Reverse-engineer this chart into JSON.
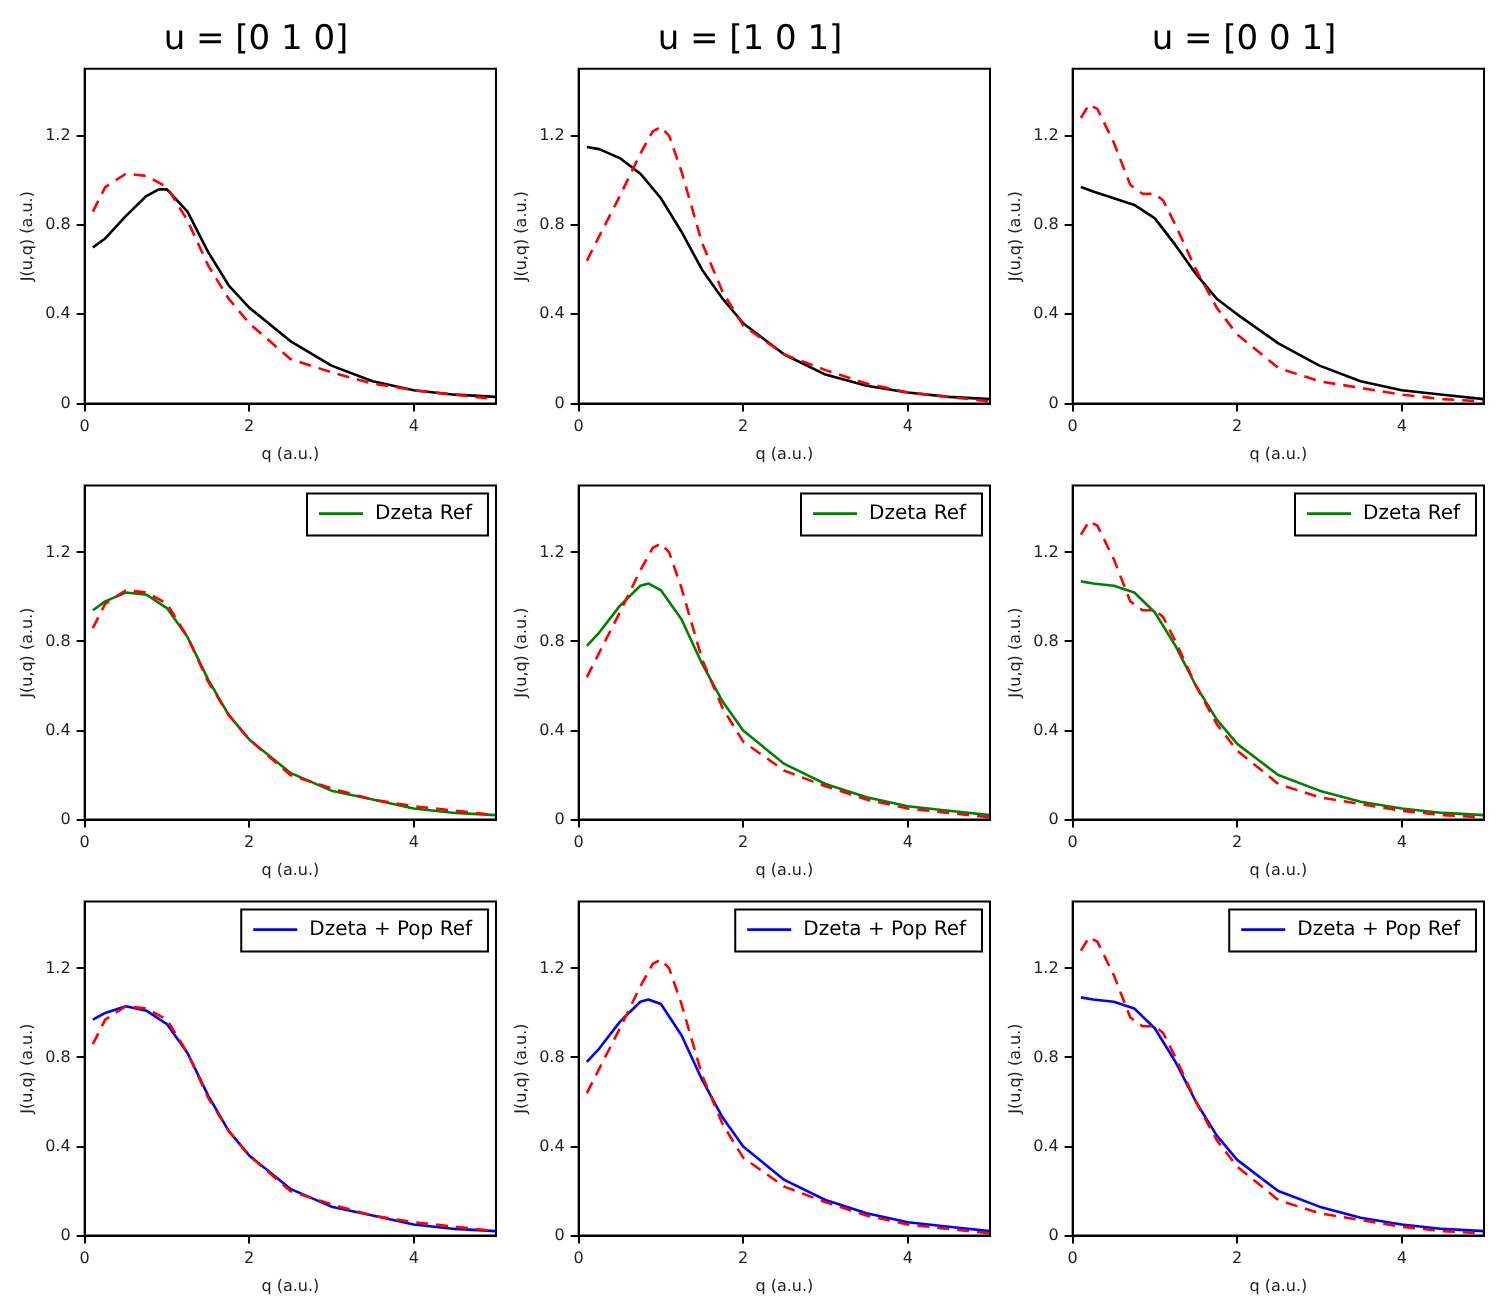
{
  "chart_data": [
    {
      "type": "line",
      "title": "u = [0 1 0]",
      "xlabel": "q (a.u.)",
      "ylabel": "J(u,q) (a.u.)",
      "xlim": [
        0,
        5
      ],
      "xticks": [
        0,
        2,
        4
      ],
      "ylim": [
        0,
        1.5
      ],
      "yticks": [
        0,
        0.4,
        0.8,
        1.2
      ],
      "legend": false,
      "series": [
        {
          "color": "#000000",
          "line_style": "solid",
          "x": [
            0.1,
            0.25,
            0.5,
            0.75,
            0.9,
            1.0,
            1.25,
            1.5,
            1.75,
            2,
            2.5,
            3,
            3.5,
            4,
            4.5,
            5
          ],
          "values": [
            0.7,
            0.74,
            0.84,
            0.93,
            0.96,
            0.96,
            0.86,
            0.68,
            0.53,
            0.43,
            0.28,
            0.17,
            0.1,
            0.06,
            0.04,
            0.03
          ]
        },
        {
          "color": "#ff0000",
          "line_style": "dashed",
          "x": [
            0.1,
            0.25,
            0.5,
            0.75,
            1.0,
            1.25,
            1.5,
            1.75,
            2,
            2.5,
            3,
            3.5,
            4,
            4.5,
            5
          ],
          "values": [
            0.86,
            0.97,
            1.03,
            1.02,
            0.97,
            0.82,
            0.62,
            0.47,
            0.36,
            0.2,
            0.14,
            0.09,
            0.06,
            0.04,
            0.02
          ]
        }
      ]
    },
    {
      "type": "line",
      "title": "u = [1 0 1]",
      "xlabel": "q (a.u.)",
      "ylabel": "J(u,q) (a.u.)",
      "xlim": [
        0,
        5
      ],
      "xticks": [
        0,
        2,
        4
      ],
      "ylim": [
        0,
        1.5
      ],
      "yticks": [
        0,
        0.4,
        0.8,
        1.2
      ],
      "legend": false,
      "series": [
        {
          "color": "#000000",
          "line_style": "solid",
          "x": [
            0.1,
            0.25,
            0.5,
            0.75,
            1.0,
            1.25,
            1.5,
            1.75,
            2,
            2.5,
            3,
            3.5,
            4,
            4.5,
            5
          ],
          "values": [
            1.15,
            1.14,
            1.1,
            1.03,
            0.92,
            0.77,
            0.6,
            0.47,
            0.36,
            0.22,
            0.13,
            0.08,
            0.05,
            0.03,
            0.02
          ]
        },
        {
          "color": "#ff0000",
          "line_style": "dashed",
          "x": [
            0.1,
            0.25,
            0.5,
            0.75,
            0.9,
            1.0,
            1.1,
            1.25,
            1.5,
            1.75,
            2,
            2.5,
            3,
            3.5,
            4,
            4.5,
            5
          ],
          "values": [
            0.64,
            0.75,
            0.93,
            1.12,
            1.22,
            1.24,
            1.2,
            1.04,
            0.72,
            0.5,
            0.35,
            0.22,
            0.15,
            0.09,
            0.05,
            0.03,
            0.01
          ]
        }
      ]
    },
    {
      "type": "line",
      "title": "u = [0 0 1]",
      "xlabel": "q (a.u.)",
      "ylabel": "J(u,q) (a.u.)",
      "xlim": [
        0,
        5
      ],
      "xticks": [
        0,
        2,
        4
      ],
      "ylim": [
        0,
        1.5
      ],
      "yticks": [
        0,
        0.4,
        0.8,
        1.2
      ],
      "legend": false,
      "series": [
        {
          "color": "#000000",
          "line_style": "solid",
          "x": [
            0.1,
            0.25,
            0.5,
            0.75,
            1.0,
            1.25,
            1.5,
            1.75,
            2,
            2.5,
            3,
            3.5,
            4,
            4.5,
            5
          ],
          "values": [
            0.97,
            0.95,
            0.92,
            0.89,
            0.83,
            0.71,
            0.58,
            0.47,
            0.4,
            0.27,
            0.17,
            0.1,
            0.06,
            0.04,
            0.02
          ]
        },
        {
          "color": "#ff0000",
          "line_style": "dashed",
          "x": [
            0.1,
            0.2,
            0.3,
            0.5,
            0.7,
            0.85,
            1.0,
            1.1,
            1.25,
            1.5,
            1.75,
            2,
            2.5,
            3,
            3.5,
            4,
            4.5,
            5
          ],
          "values": [
            1.28,
            1.34,
            1.32,
            1.17,
            0.98,
            0.94,
            0.94,
            0.91,
            0.8,
            0.6,
            0.43,
            0.31,
            0.16,
            0.1,
            0.07,
            0.04,
            0.02,
            0.01
          ]
        }
      ]
    },
    {
      "type": "line",
      "xlabel": "q (a.u.)",
      "ylabel": "J(u,q) (a.u.)",
      "xlim": [
        0,
        5
      ],
      "xticks": [
        0,
        2,
        4
      ],
      "ylim": [
        0,
        1.5
      ],
      "yticks": [
        0,
        0.4,
        0.8,
        1.2
      ],
      "legend": "top right",
      "series": [
        {
          "name": "Dzeta Ref",
          "color": "#008000",
          "line_style": "solid",
          "x": [
            0.1,
            0.25,
            0.5,
            0.75,
            1.0,
            1.25,
            1.5,
            1.75,
            2,
            2.5,
            3,
            3.5,
            4,
            4.5,
            5
          ],
          "values": [
            0.94,
            0.98,
            1.02,
            1.01,
            0.95,
            0.82,
            0.63,
            0.47,
            0.36,
            0.21,
            0.13,
            0.09,
            0.05,
            0.03,
            0.02
          ]
        },
        {
          "color": "#ff0000",
          "line_style": "dashed",
          "x": [
            0.1,
            0.25,
            0.5,
            0.75,
            1.0,
            1.25,
            1.5,
            1.75,
            2,
            2.5,
            3,
            3.5,
            4,
            4.5,
            5
          ],
          "values": [
            0.86,
            0.97,
            1.03,
            1.02,
            0.97,
            0.82,
            0.62,
            0.47,
            0.36,
            0.2,
            0.14,
            0.09,
            0.06,
            0.04,
            0.02
          ]
        }
      ]
    },
    {
      "type": "line",
      "xlabel": "q (a.u.)",
      "ylabel": "J(u,q) (a.u.)",
      "xlim": [
        0,
        5
      ],
      "xticks": [
        0,
        2,
        4
      ],
      "ylim": [
        0,
        1.5
      ],
      "yticks": [
        0,
        0.4,
        0.8,
        1.2
      ],
      "legend": "top right",
      "series": [
        {
          "name": "Dzeta Ref",
          "color": "#008000",
          "line_style": "solid",
          "x": [
            0.1,
            0.25,
            0.5,
            0.75,
            0.85,
            1.0,
            1.25,
            1.5,
            1.75,
            2,
            2.5,
            3,
            3.5,
            4,
            4.5,
            5
          ],
          "values": [
            0.78,
            0.84,
            0.96,
            1.05,
            1.06,
            1.03,
            0.9,
            0.7,
            0.53,
            0.4,
            0.25,
            0.16,
            0.1,
            0.06,
            0.04,
            0.02
          ]
        },
        {
          "color": "#ff0000",
          "line_style": "dashed",
          "x": [
            0.1,
            0.25,
            0.5,
            0.75,
            0.9,
            1.0,
            1.1,
            1.25,
            1.5,
            1.75,
            2,
            2.5,
            3,
            3.5,
            4,
            4.5,
            5
          ],
          "values": [
            0.64,
            0.75,
            0.93,
            1.12,
            1.22,
            1.24,
            1.2,
            1.04,
            0.72,
            0.5,
            0.35,
            0.22,
            0.15,
            0.09,
            0.05,
            0.03,
            0.01
          ]
        }
      ]
    },
    {
      "type": "line",
      "xlabel": "q (a.u.)",
      "ylabel": "J(u,q) (a.u.)",
      "xlim": [
        0,
        5
      ],
      "xticks": [
        0,
        2,
        4
      ],
      "ylim": [
        0,
        1.5
      ],
      "yticks": [
        0,
        0.4,
        0.8,
        1.2
      ],
      "legend": "top right",
      "series": [
        {
          "name": "Dzeta Ref",
          "color": "#008000",
          "line_style": "solid",
          "x": [
            0.1,
            0.25,
            0.5,
            0.75,
            1.0,
            1.25,
            1.5,
            1.75,
            2,
            2.5,
            3,
            3.5,
            4,
            4.5,
            5
          ],
          "values": [
            1.07,
            1.06,
            1.05,
            1.02,
            0.93,
            0.78,
            0.6,
            0.45,
            0.34,
            0.2,
            0.13,
            0.08,
            0.05,
            0.03,
            0.02
          ]
        },
        {
          "color": "#ff0000",
          "line_style": "dashed",
          "x": [
            0.1,
            0.2,
            0.3,
            0.5,
            0.7,
            0.85,
            1.0,
            1.1,
            1.25,
            1.5,
            1.75,
            2,
            2.5,
            3,
            3.5,
            4,
            4.5,
            5
          ],
          "values": [
            1.28,
            1.34,
            1.32,
            1.17,
            0.98,
            0.94,
            0.94,
            0.91,
            0.8,
            0.6,
            0.43,
            0.31,
            0.16,
            0.1,
            0.07,
            0.04,
            0.02,
            0.01
          ]
        }
      ]
    },
    {
      "type": "line",
      "xlabel": "q (a.u.)",
      "ylabel": "J(u,q) (a.u.)",
      "xlim": [
        0,
        5
      ],
      "xticks": [
        0,
        2,
        4
      ],
      "ylim": [
        0,
        1.5
      ],
      "yticks": [
        0,
        0.4,
        0.8,
        1.2
      ],
      "legend": "top right",
      "series": [
        {
          "name": "Dzeta + Pop Ref",
          "color": "#0000ff",
          "line_style": "solid",
          "x": [
            0.1,
            0.25,
            0.5,
            0.75,
            1.0,
            1.25,
            1.5,
            1.75,
            2,
            2.5,
            3,
            3.5,
            4,
            4.5,
            5
          ],
          "values": [
            0.97,
            1.0,
            1.03,
            1.01,
            0.95,
            0.82,
            0.63,
            0.47,
            0.36,
            0.21,
            0.13,
            0.09,
            0.05,
            0.03,
            0.02
          ]
        },
        {
          "color": "#ff0000",
          "line_style": "dashed",
          "x": [
            0.1,
            0.25,
            0.5,
            0.75,
            1.0,
            1.25,
            1.5,
            1.75,
            2,
            2.5,
            3,
            3.5,
            4,
            4.5,
            5
          ],
          "values": [
            0.86,
            0.97,
            1.03,
            1.02,
            0.97,
            0.82,
            0.62,
            0.47,
            0.36,
            0.2,
            0.14,
            0.09,
            0.06,
            0.04,
            0.02
          ]
        }
      ]
    },
    {
      "type": "line",
      "xlabel": "q (a.u.)",
      "ylabel": "J(u,q) (a.u.)",
      "xlim": [
        0,
        5
      ],
      "xticks": [
        0,
        2,
        4
      ],
      "ylim": [
        0,
        1.5
      ],
      "yticks": [
        0,
        0.4,
        0.8,
        1.2
      ],
      "legend": "top right",
      "series": [
        {
          "name": "Dzeta + Pop Ref",
          "color": "#0000ff",
          "line_style": "solid",
          "x": [
            0.1,
            0.25,
            0.5,
            0.75,
            0.85,
            1.0,
            1.25,
            1.5,
            1.75,
            2,
            2.5,
            3,
            3.5,
            4,
            4.5,
            5
          ],
          "values": [
            0.78,
            0.84,
            0.96,
            1.05,
            1.06,
            1.04,
            0.9,
            0.7,
            0.53,
            0.4,
            0.25,
            0.16,
            0.1,
            0.06,
            0.04,
            0.02
          ]
        },
        {
          "color": "#ff0000",
          "line_style": "dashed",
          "x": [
            0.1,
            0.25,
            0.5,
            0.75,
            0.9,
            1.0,
            1.1,
            1.25,
            1.5,
            1.75,
            2,
            2.5,
            3,
            3.5,
            4,
            4.5,
            5
          ],
          "values": [
            0.64,
            0.75,
            0.93,
            1.12,
            1.22,
            1.24,
            1.2,
            1.04,
            0.72,
            0.5,
            0.35,
            0.22,
            0.15,
            0.09,
            0.05,
            0.03,
            0.01
          ]
        }
      ]
    },
    {
      "type": "line",
      "xlabel": "q (a.u.)",
      "ylabel": "J(u,q) (a.u.)",
      "xlim": [
        0,
        5
      ],
      "xticks": [
        0,
        2,
        4
      ],
      "ylim": [
        0,
        1.5
      ],
      "yticks": [
        0,
        0.4,
        0.8,
        1.2
      ],
      "legend": "top right",
      "series": [
        {
          "name": "Dzeta + Pop Ref",
          "color": "#0000ff",
          "line_style": "solid",
          "x": [
            0.1,
            0.25,
            0.5,
            0.75,
            1.0,
            1.25,
            1.5,
            1.75,
            2,
            2.5,
            3,
            3.5,
            4,
            4.5,
            5
          ],
          "values": [
            1.07,
            1.06,
            1.05,
            1.02,
            0.93,
            0.78,
            0.6,
            0.45,
            0.34,
            0.2,
            0.13,
            0.08,
            0.05,
            0.03,
            0.02
          ]
        },
        {
          "color": "#ff0000",
          "line_style": "dashed",
          "x": [
            0.1,
            0.2,
            0.3,
            0.5,
            0.7,
            0.85,
            1.0,
            1.1,
            1.25,
            1.5,
            1.75,
            2,
            2.5,
            3,
            3.5,
            4,
            4.5,
            5
          ],
          "values": [
            1.28,
            1.34,
            1.32,
            1.17,
            0.98,
            0.94,
            0.94,
            0.91,
            0.8,
            0.6,
            0.43,
            0.31,
            0.16,
            0.1,
            0.07,
            0.04,
            0.02,
            0.01
          ]
        }
      ]
    }
  ]
}
